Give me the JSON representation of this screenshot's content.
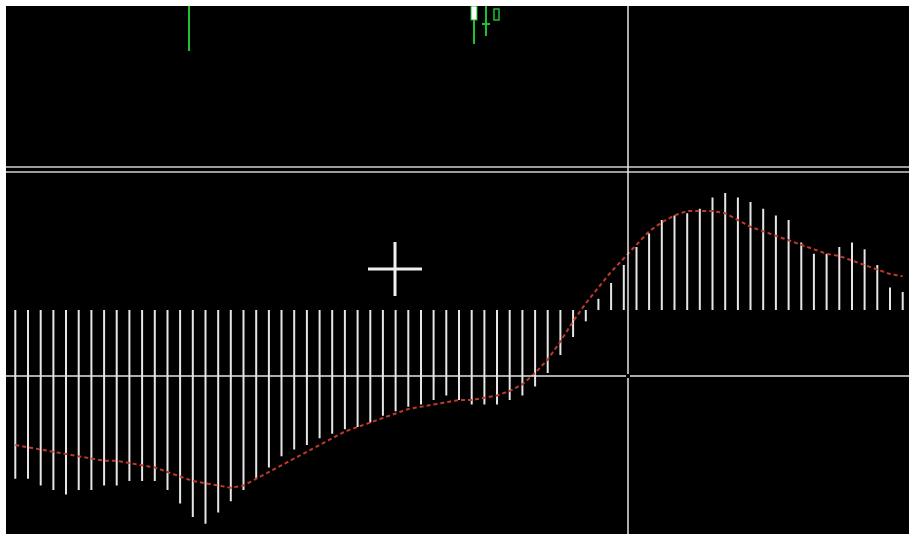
{
  "colors": {
    "background": "#000000",
    "histogram": "#e6e6e6",
    "signal": "#c0392b",
    "price_candle": "#1fbf2f",
    "crosshair": "#e6e6e6",
    "separator": "#d0d0d0"
  },
  "icons": {
    "cursor": "crosshair-cursor-icon"
  },
  "chart_data": {
    "type": "bar",
    "title": "",
    "xlabel": "",
    "ylabel": "",
    "grid": false,
    "legend": "none",
    "ylim": [
      -1.0,
      0.6
    ],
    "x": [
      1,
      2,
      3,
      4,
      5,
      6,
      7,
      8,
      9,
      10,
      11,
      12,
      13,
      14,
      15,
      16,
      17,
      18,
      19,
      20,
      21,
      22,
      23,
      24,
      25,
      26,
      27,
      28,
      29,
      30,
      31,
      32,
      33,
      34,
      35,
      36,
      37,
      38,
      39,
      40,
      41,
      42,
      43,
      44,
      45,
      46,
      47,
      48,
      49,
      50,
      51,
      52,
      53,
      54,
      55,
      56,
      57,
      58,
      59,
      60,
      61,
      62,
      63,
      64,
      65,
      66,
      67,
      68,
      69,
      70,
      71
    ],
    "series": [
      {
        "kind": "histogram",
        "values": [
          -0.75,
          -0.75,
          -0.78,
          -0.8,
          -0.82,
          -0.8,
          -0.8,
          -0.78,
          -0.78,
          -0.76,
          -0.76,
          -0.76,
          -0.8,
          -0.86,
          -0.92,
          -0.95,
          -0.9,
          -0.85,
          -0.8,
          -0.75,
          -0.7,
          -0.65,
          -0.62,
          -0.6,
          -0.57,
          -0.55,
          -0.53,
          -0.52,
          -0.5,
          -0.47,
          -0.45,
          -0.43,
          -0.42,
          -0.4,
          -0.38,
          -0.4,
          -0.42,
          -0.42,
          -0.42,
          -0.4,
          -0.38,
          -0.34,
          -0.28,
          -0.2,
          -0.12,
          -0.05,
          0.05,
          0.12,
          0.2,
          0.28,
          0.34,
          0.4,
          0.42,
          0.43,
          0.45,
          0.5,
          0.52,
          0.5,
          0.48,
          0.45,
          0.42,
          0.4,
          0.3,
          0.25,
          0.25,
          0.28,
          0.3,
          0.27,
          0.2,
          0.1,
          0.08
        ]
      },
      {
        "kind": "signal",
        "values": [
          -0.6,
          -0.61,
          -0.62,
          -0.63,
          -0.64,
          -0.65,
          -0.66,
          -0.67,
          -0.67,
          -0.68,
          -0.69,
          -0.7,
          -0.72,
          -0.74,
          -0.76,
          -0.77,
          -0.78,
          -0.79,
          -0.78,
          -0.75,
          -0.72,
          -0.69,
          -0.66,
          -0.63,
          -0.6,
          -0.57,
          -0.54,
          -0.52,
          -0.5,
          -0.48,
          -0.46,
          -0.44,
          -0.43,
          -0.42,
          -0.41,
          -0.4,
          -0.4,
          -0.39,
          -0.38,
          -0.36,
          -0.33,
          -0.28,
          -0.22,
          -0.14,
          -0.05,
          0.03,
          0.1,
          0.17,
          0.23,
          0.29,
          0.35,
          0.39,
          0.42,
          0.44,
          0.44,
          0.44,
          0.43,
          0.4,
          0.37,
          0.35,
          0.33,
          0.31,
          0.29,
          0.27,
          0.25,
          0.24,
          0.22,
          0.2,
          0.18,
          0.16,
          0.15
        ]
      }
    ]
  }
}
